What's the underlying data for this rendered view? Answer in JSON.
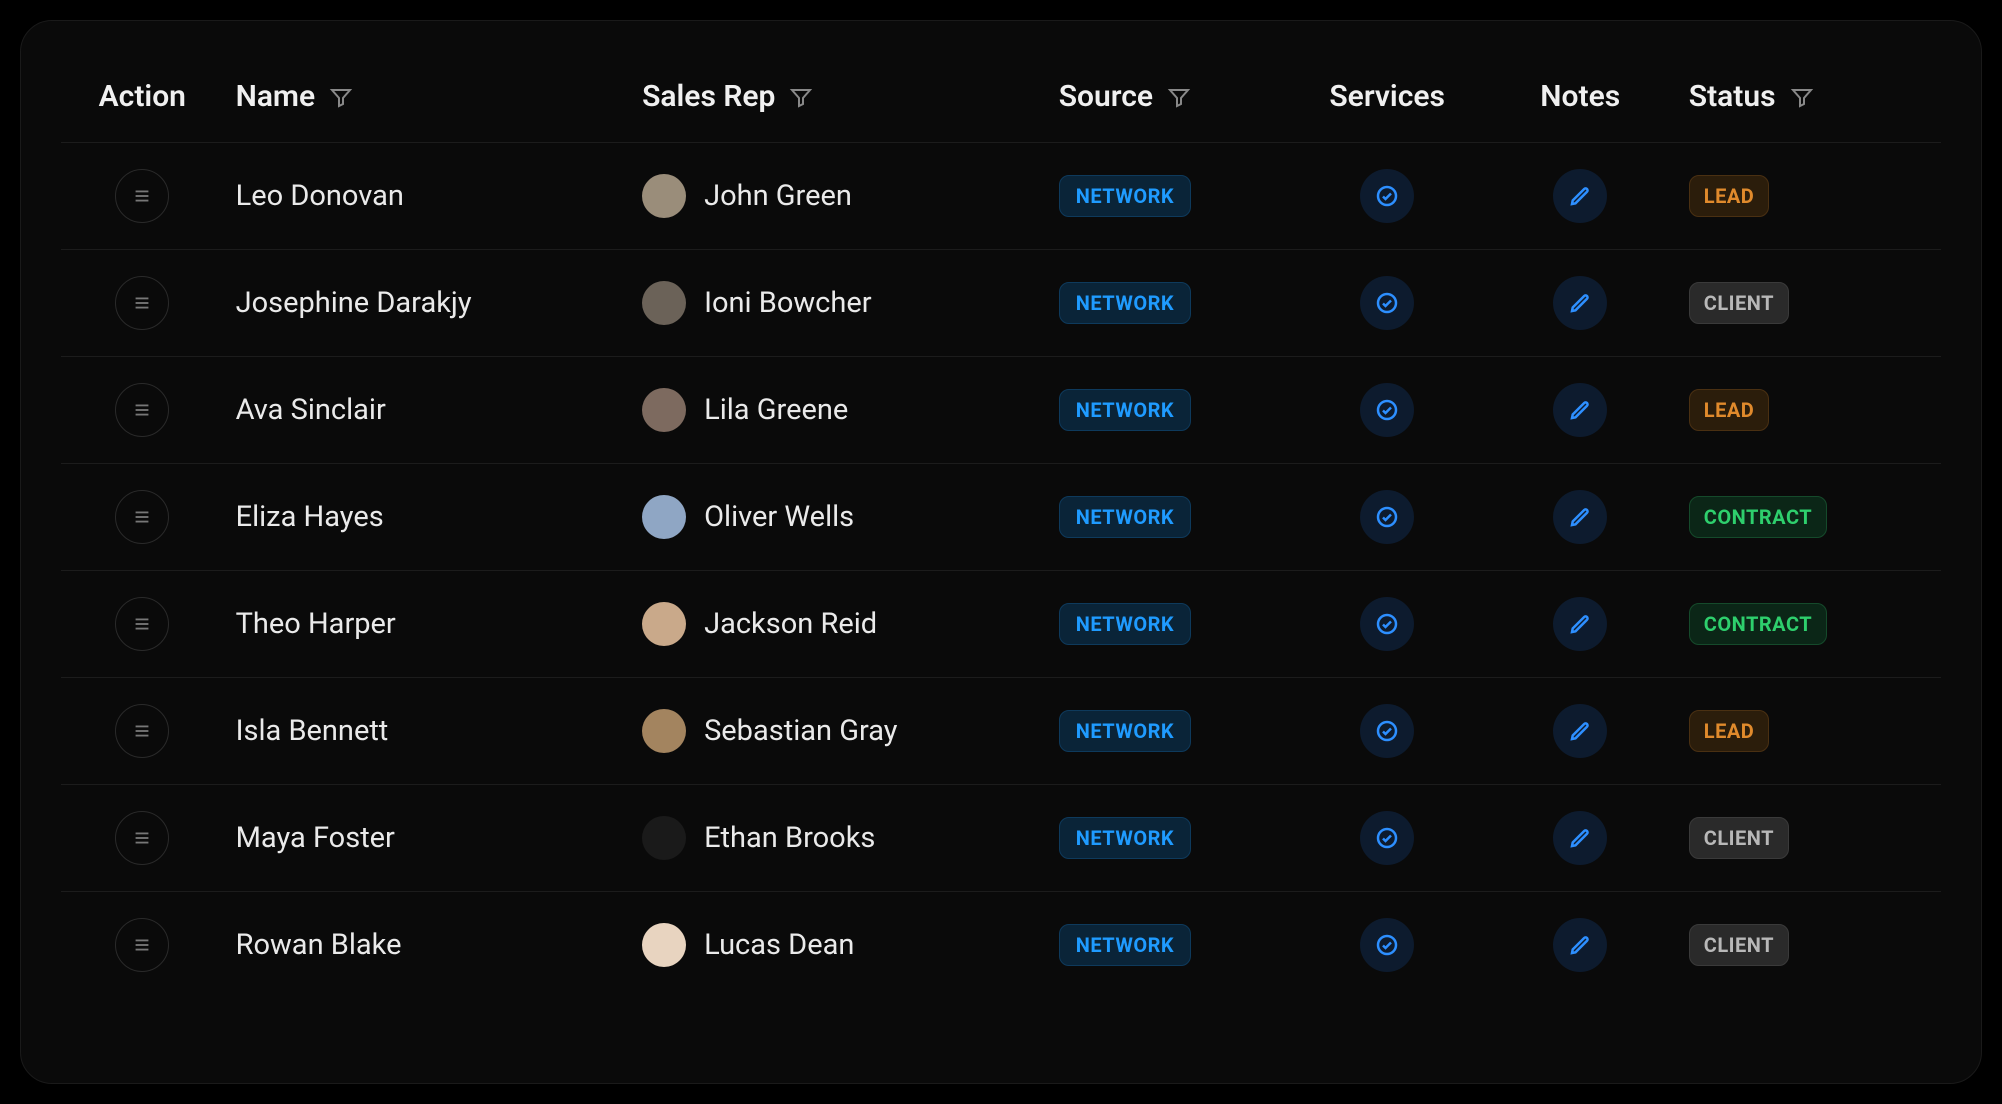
{
  "colors": {
    "background": "#000000",
    "panel_bg": "#0a0a0a",
    "row_border": "#1c1c1c",
    "text": "#eaeaea",
    "header_text": "#f0f0f0",
    "filter_icon": "#888888",
    "action_icon": "#777777",
    "icon_btn_bg": "#0d1b2e",
    "icon_btn_stroke": "#2d8fff",
    "network_text": "#1f9bff",
    "network_bg": "#0a2438",
    "status": {
      "LEAD": {
        "text": "#e08a2c",
        "bg": "#2b1d0b"
      },
      "CLIENT": {
        "text": "#b8b8b8",
        "bg": "#2a2a2a"
      },
      "CONTRACT": {
        "text": "#2ecf6d",
        "bg": "#0b2617"
      }
    }
  },
  "columns": {
    "action": {
      "label": "Action",
      "filter": false
    },
    "name": {
      "label": "Name",
      "filter": true
    },
    "salesrep": {
      "label": "Sales Rep",
      "filter": true
    },
    "source": {
      "label": "Source",
      "filter": true
    },
    "services": {
      "label": "Services",
      "filter": false
    },
    "notes": {
      "label": "Notes",
      "filter": false
    },
    "status": {
      "label": "Status",
      "filter": true
    }
  },
  "source_label": "NETWORK",
  "rows": [
    {
      "name": "Leo Donovan",
      "sales_rep": "John Green",
      "avatar_bg": "#9a8d7a",
      "source": "NETWORK",
      "status": "LEAD"
    },
    {
      "name": "Josephine Darakjy",
      "sales_rep": "Ioni Bowcher",
      "avatar_bg": "#6b6258",
      "source": "NETWORK",
      "status": "CLIENT"
    },
    {
      "name": "Ava Sinclair",
      "sales_rep": "Lila Greene",
      "avatar_bg": "#7d6a5f",
      "source": "NETWORK",
      "status": "LEAD"
    },
    {
      "name": "Eliza Hayes",
      "sales_rep": "Oliver Wells",
      "avatar_bg": "#8fa6c4",
      "source": "NETWORK",
      "status": "CONTRACT"
    },
    {
      "name": "Theo Harper",
      "sales_rep": "Jackson Reid",
      "avatar_bg": "#c9a98a",
      "source": "NETWORK",
      "status": "CONTRACT"
    },
    {
      "name": "Isla Bennett",
      "sales_rep": "Sebastian Gray",
      "avatar_bg": "#a3845f",
      "source": "NETWORK",
      "status": "LEAD"
    },
    {
      "name": "Maya Foster",
      "sales_rep": "Ethan Brooks",
      "avatar_bg": "#1a1a1a",
      "source": "NETWORK",
      "status": "CLIENT"
    },
    {
      "name": "Rowan Blake",
      "sales_rep": "Lucas Dean",
      "avatar_bg": "#e8d4c0",
      "source": "NETWORK",
      "status": "CLIENT"
    }
  ]
}
